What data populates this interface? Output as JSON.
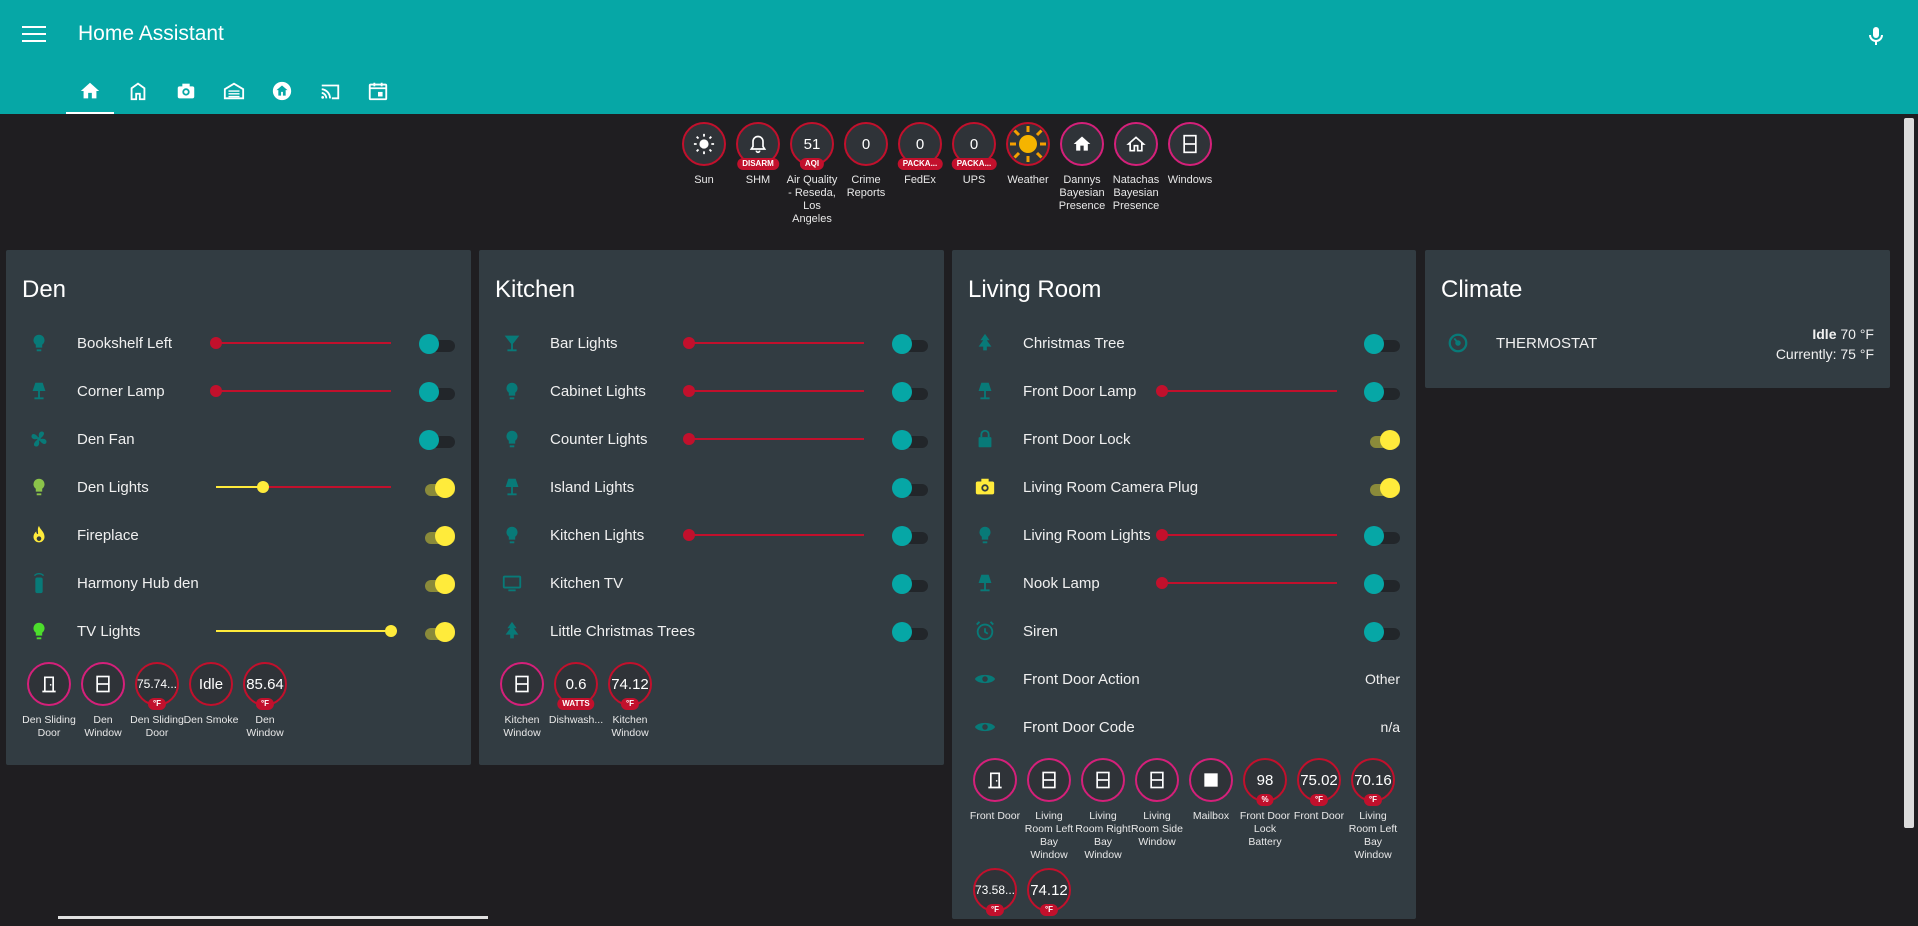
{
  "header": {
    "title": "Home Assistant",
    "tabs": [
      "home-icon",
      "house-building-icon",
      "camera-icon",
      "garage-icon",
      "home-circle-icon",
      "cast-icon",
      "calendar-icon"
    ]
  },
  "badges": [
    {
      "label": "Sun",
      "value": "",
      "tag": "",
      "icon": "sun-icon",
      "border": "red"
    },
    {
      "label": "SHM",
      "value": "",
      "tag": "DISARM",
      "icon": "bell-icon",
      "border": "red"
    },
    {
      "label": "Air Quality - Reseda, Los Angeles",
      "value": "51",
      "tag": "AQI",
      "icon": "",
      "border": "red"
    },
    {
      "label": "Crime Reports",
      "value": "0",
      "tag": "",
      "icon": "",
      "border": "red"
    },
    {
      "label": "FedEx",
      "value": "0",
      "tag": "PACKA...",
      "icon": "",
      "border": "red"
    },
    {
      "label": "UPS",
      "value": "0",
      "tag": "PACKA...",
      "icon": "",
      "border": "red"
    },
    {
      "label": "Weather",
      "value": "",
      "tag": "",
      "icon": "weather-sunny-icon",
      "border": "red"
    },
    {
      "label": "Dannys Bayesian Presence",
      "value": "",
      "tag": "",
      "icon": "home-filled-icon",
      "border": "pink"
    },
    {
      "label": "Natachas Bayesian Presence",
      "value": "",
      "tag": "",
      "icon": "home-outline-icon",
      "border": "pink"
    },
    {
      "label": "Windows",
      "value": "",
      "tag": "",
      "icon": "window-icon",
      "border": "pink"
    }
  ],
  "den": {
    "title": "Den",
    "rows": [
      {
        "name": "Bookshelf Left",
        "slider": 0,
        "on": false
      },
      {
        "name": "Corner Lamp",
        "slider": 0,
        "on": false
      },
      {
        "name": "Den Fan",
        "on": false
      },
      {
        "name": "Den Lights",
        "slider": 0.27,
        "on": true
      },
      {
        "name": "Fireplace",
        "on": true
      },
      {
        "name": "Harmony Hub den",
        "on": true
      },
      {
        "name": "TV Lights",
        "slider": 1.0,
        "on": true
      }
    ],
    "badges": [
      {
        "label": "Den Sliding Door",
        "value": "",
        "tag": "",
        "border": "pink"
      },
      {
        "label": "Den Window",
        "value": "",
        "tag": "",
        "border": "pink"
      },
      {
        "label": "Den Sliding Door",
        "value": "75.74...",
        "tag": "°F",
        "border": "red"
      },
      {
        "label": "Den Smoke",
        "value": "Idle",
        "tag": "",
        "border": "red"
      },
      {
        "label": "Den Window",
        "value": "85.64",
        "tag": "°F",
        "border": "red"
      }
    ]
  },
  "kitchen": {
    "title": "Kitchen",
    "rows": [
      {
        "name": "Bar Lights",
        "slider": 0,
        "on": false
      },
      {
        "name": "Cabinet Lights",
        "slider": 0,
        "on": false
      },
      {
        "name": "Counter Lights",
        "slider": 0,
        "on": false
      },
      {
        "name": "Island Lights",
        "on": false
      },
      {
        "name": "Kitchen Lights",
        "slider": 0,
        "on": false
      },
      {
        "name": "Kitchen TV",
        "on": false
      },
      {
        "name": "Little Christmas Trees",
        "on": false
      }
    ],
    "badges": [
      {
        "label": "Kitchen Window",
        "value": "",
        "tag": "",
        "border": "pink"
      },
      {
        "label": "Dishwash...",
        "value": "0.6",
        "tag": "WATTS",
        "border": "red"
      },
      {
        "label": "Kitchen Window",
        "value": "74.12",
        "tag": "°F",
        "border": "red"
      }
    ]
  },
  "living": {
    "title": "Living Room",
    "rows": [
      {
        "name": "Christmas Tree",
        "on": false
      },
      {
        "name": "Front Door Lamp",
        "slider": 0,
        "on": false
      },
      {
        "name": "Front Door Lock",
        "on": true
      },
      {
        "name": "Living Room Camera Plug",
        "on": true
      },
      {
        "name": "Living Room Lights",
        "slider": 0,
        "on": false
      },
      {
        "name": "Nook Lamp",
        "slider": 0,
        "on": false
      },
      {
        "name": "Siren",
        "on": false
      },
      {
        "name": "Front Door Action",
        "state": "Other"
      },
      {
        "name": "Front Door Code",
        "state": "n/a"
      }
    ],
    "badges": [
      {
        "label": "Front Door",
        "value": "",
        "tag": "",
        "border": "pink"
      },
      {
        "label": "Living Room Left Bay Window",
        "value": "",
        "tag": "",
        "border": "pink"
      },
      {
        "label": "Living Room Right Bay Window",
        "value": "",
        "tag": "",
        "border": "pink"
      },
      {
        "label": "Living Room Side Window",
        "value": "",
        "tag": "",
        "border": "pink"
      },
      {
        "label": "Mailbox",
        "value": "",
        "tag": "",
        "border": "pink"
      },
      {
        "label": "Front Door Lock Battery",
        "value": "98",
        "tag": "%",
        "border": "red"
      },
      {
        "label": "Front Door",
        "value": "75.02",
        "tag": "°F",
        "border": "red"
      },
      {
        "label": "Living Room Left Bay Window",
        "value": "70.16",
        "tag": "°F",
        "border": "red"
      },
      {
        "label": "",
        "value": "73.58...",
        "tag": "°F",
        "border": "red"
      },
      {
        "label": "",
        "value": "74.12",
        "tag": "°F",
        "border": "red"
      }
    ]
  },
  "climate": {
    "title": "Climate",
    "name": "THERMOSTAT",
    "state_label": "Idle",
    "target": "70 °F",
    "current": "Currently: 75 °F"
  },
  "colors": {
    "accent": "#06a7a6",
    "on": "#ffeb3b",
    "alert": "#c2102c",
    "pink": "#d5207a"
  }
}
